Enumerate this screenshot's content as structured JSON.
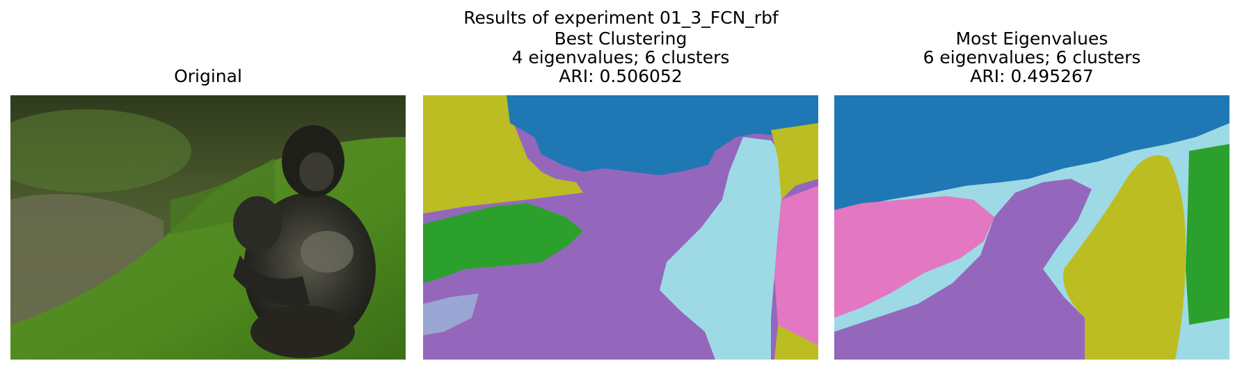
{
  "suptitle": "Results of experiment 01_3_FCN_rbf",
  "panels": [
    {
      "title_lines": [
        "Original"
      ],
      "image": "photo of a gorilla sitting on grass"
    },
    {
      "title_lines": [
        "Best Clustering",
        "4 eigenvalues; 6 clusters",
        "ARI: 0.506052"
      ],
      "image": "segmentation map"
    },
    {
      "title_lines": [
        "Most Eigenvalues",
        "6 eigenvalues; 6 clusters",
        "ARI: 0.495267"
      ],
      "image": "segmentation map"
    }
  ],
  "colors": {
    "blue": "#1f77b4",
    "olive": "#bcbd22",
    "green": "#2ca02c",
    "purple": "#9467bd",
    "cyan": "#9edae5",
    "pink": "#e377c2"
  }
}
